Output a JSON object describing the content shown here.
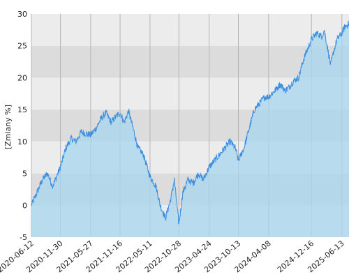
{
  "chart_data": {
    "type": "area",
    "ylabel": "[Zmiany %]",
    "ylim": [
      -5,
      30
    ],
    "yticks": [
      -5,
      0,
      5,
      10,
      15,
      20,
      25,
      30
    ],
    "x_tick_labels": [
      "2020-06-12",
      "2020-11-30",
      "2021-05-27",
      "2021-11-16",
      "2022-05-11",
      "2022-10-28",
      "2023-04-24",
      "2023-10-13",
      "2024-04-08",
      "2024-12-16",
      "2025-06-13"
    ],
    "grid": true,
    "colors": {
      "line": "#3b8fe0",
      "fill": "#a8d6ef",
      "band_dark": "#dcdcdc",
      "band_light": "#ececec",
      "grid": "#b4b4b4"
    },
    "series": [
      {
        "x": [
          "2020-06-12",
          "2020-07-15",
          "2020-08-15",
          "2020-09-15",
          "2020-10-15",
          "2020-11-30",
          "2021-01-01",
          "2021-02-01",
          "2021-03-01",
          "2021-04-01",
          "2021-05-27",
          "2021-06-25",
          "2021-07-25",
          "2021-08-25",
          "2021-09-25",
          "2021-10-25",
          "2021-11-16",
          "2021-12-10",
          "2022-01-05",
          "2022-02-01",
          "2022-03-01",
          "2022-04-01",
          "2022-05-11",
          "2022-06-15",
          "2022-07-10",
          "2022-08-10",
          "2022-09-10",
          "2022-10-01",
          "2022-10-28",
          "2022-11-20",
          "2022-12-20",
          "2023-01-20",
          "2023-02-20",
          "2023-03-20",
          "2023-04-24",
          "2023-05-25",
          "2023-06-25",
          "2023-07-25",
          "2023-08-25",
          "2023-09-25",
          "2023-10-13",
          "2023-11-15",
          "2023-12-15",
          "2024-01-15",
          "2024-02-15",
          "2024-03-15",
          "2024-04-08",
          "2024-05-15",
          "2024-06-15",
          "2024-07-15",
          "2024-08-05",
          "2024-09-01",
          "2024-10-01",
          "2024-11-01",
          "2024-12-16",
          "2025-01-15",
          "2025-02-15",
          "2025-03-01",
          "2025-04-08",
          "2025-04-25",
          "2025-05-15",
          "2025-06-13",
          "2025-07-01",
          "2025-07-25"
        ],
        "y": [
          0,
          2,
          4,
          5,
          3,
          6,
          9,
          10.5,
          10,
          11.5,
          11,
          12,
          13.5,
          14.5,
          13,
          14,
          14.5,
          13,
          14.8,
          12,
          9,
          8,
          4.5,
          3,
          0,
          -2,
          1,
          4,
          -3,
          2,
          4,
          3.5,
          5,
          4,
          6,
          7,
          8,
          9,
          10,
          9,
          7,
          9,
          12,
          15,
          16,
          17,
          17,
          18,
          19,
          18,
          18.5,
          19.5,
          20,
          23,
          26,
          27,
          26.5,
          27.5,
          22,
          24,
          26,
          27,
          28,
          28.5
        ]
      }
    ]
  }
}
